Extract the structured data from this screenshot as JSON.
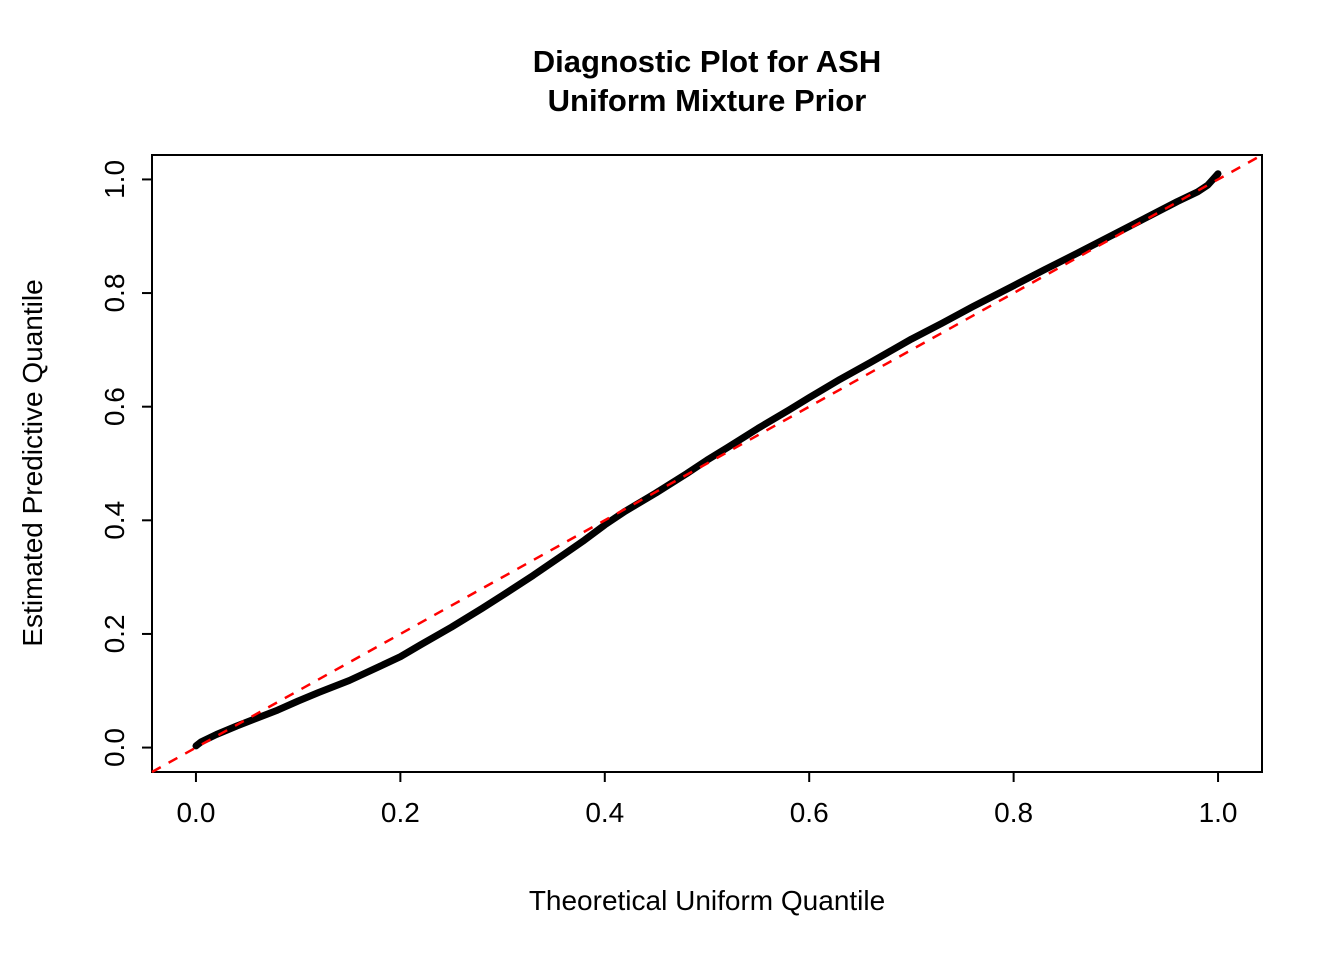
{
  "chart_data": {
    "type": "line",
    "title": "Diagnostic Plot for ASH\nUniform Mixture Prior",
    "title_lines": [
      "Diagnostic Plot for ASH",
      "Uniform Mixture Prior"
    ],
    "xlabel": "Theoretical Uniform Quantile",
    "ylabel": "Estimated Predictive Quantile",
    "xlim": [
      -0.043,
      1.043
    ],
    "ylim": [
      -0.043,
      1.043
    ],
    "x_ticks": [
      0.0,
      0.2,
      0.4,
      0.6,
      0.8,
      1.0
    ],
    "x_tick_labels": [
      "0.0",
      "0.2",
      "0.4",
      "0.6",
      "0.8",
      "1.0"
    ],
    "y_ticks": [
      0.0,
      0.2,
      0.4,
      0.6,
      0.8,
      1.0
    ],
    "y_tick_labels": [
      "0.0",
      "0.2",
      "0.4",
      "0.6",
      "0.8",
      "1.0"
    ],
    "grid": false,
    "legend": "none",
    "colors": {
      "curve": "#000000",
      "reference_line": "#ff0000",
      "box": "#000000"
    },
    "series": [
      {
        "name": "estimated-predictive-quantiles",
        "color": "#000000",
        "style": "thick-solid",
        "points": [
          [
            0.0,
            0.003
          ],
          [
            0.005,
            0.01
          ],
          [
            0.02,
            0.023
          ],
          [
            0.04,
            0.038
          ],
          [
            0.06,
            0.052
          ],
          [
            0.08,
            0.066
          ],
          [
            0.1,
            0.082
          ],
          [
            0.12,
            0.097
          ],
          [
            0.15,
            0.118
          ],
          [
            0.18,
            0.143
          ],
          [
            0.2,
            0.16
          ],
          [
            0.22,
            0.181
          ],
          [
            0.25,
            0.212
          ],
          [
            0.28,
            0.245
          ],
          [
            0.3,
            0.268
          ],
          [
            0.33,
            0.303
          ],
          [
            0.36,
            0.34
          ],
          [
            0.38,
            0.365
          ],
          [
            0.4,
            0.392
          ],
          [
            0.42,
            0.416
          ],
          [
            0.45,
            0.448
          ],
          [
            0.48,
            0.482
          ],
          [
            0.5,
            0.506
          ],
          [
            0.52,
            0.528
          ],
          [
            0.55,
            0.562
          ],
          [
            0.58,
            0.594
          ],
          [
            0.6,
            0.616
          ],
          [
            0.63,
            0.648
          ],
          [
            0.66,
            0.678
          ],
          [
            0.7,
            0.719
          ],
          [
            0.73,
            0.747
          ],
          [
            0.76,
            0.776
          ],
          [
            0.8,
            0.813
          ],
          [
            0.83,
            0.841
          ],
          [
            0.86,
            0.868
          ],
          [
            0.9,
            0.905
          ],
          [
            0.93,
            0.933
          ],
          [
            0.96,
            0.961
          ],
          [
            0.98,
            0.978
          ],
          [
            0.99,
            0.99
          ],
          [
            0.995,
            1.0
          ],
          [
            1.0,
            1.01
          ]
        ]
      },
      {
        "name": "reference-diagonal",
        "color": "#ff0000",
        "style": "dashed",
        "points": [
          [
            -0.043,
            -0.043
          ],
          [
            1.043,
            1.043
          ]
        ]
      }
    ]
  }
}
